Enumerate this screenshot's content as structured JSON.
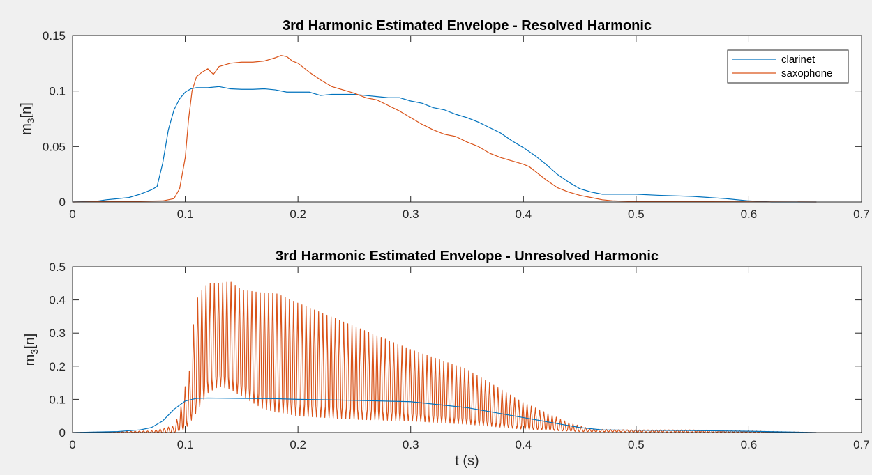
{
  "chart_data": [
    {
      "type": "line",
      "title": "3rd Harmonic Estimated Envelope - Resolved Harmonic",
      "xlabel": "",
      "ylabel": "m",
      "ylabel_sub": "3",
      "ylabel_suffix": "[n]",
      "xlim": [
        0,
        0.7
      ],
      "ylim": [
        0,
        0.15
      ],
      "xticks": [
        0,
        0.1,
        0.2,
        0.3,
        0.4,
        0.5,
        0.6,
        0.7
      ],
      "xtick_labels": [
        "0",
        "0.1",
        "0.2",
        "0.3",
        "0.4",
        "0.5",
        "0.6",
        "0.7"
      ],
      "yticks": [
        0,
        0.05,
        0.1,
        0.15
      ],
      "ytick_labels": [
        "0",
        "0.05",
        "0.1",
        "0.15"
      ],
      "grid": false,
      "legend": "top-right",
      "series": [
        {
          "name": "clarinet",
          "color": "#0072bd",
          "x": [
            0,
            0.02,
            0.03,
            0.04,
            0.05,
            0.06,
            0.07,
            0.075,
            0.08,
            0.085,
            0.09,
            0.095,
            0.1,
            0.105,
            0.11,
            0.12,
            0.13,
            0.14,
            0.15,
            0.16,
            0.17,
            0.18,
            0.19,
            0.2,
            0.21,
            0.22,
            0.23,
            0.24,
            0.25,
            0.26,
            0.27,
            0.28,
            0.29,
            0.3,
            0.31,
            0.32,
            0.33,
            0.34,
            0.35,
            0.36,
            0.37,
            0.38,
            0.39,
            0.4,
            0.41,
            0.42,
            0.43,
            0.44,
            0.45,
            0.46,
            0.47,
            0.48,
            0.49,
            0.5,
            0.52,
            0.55,
            0.58,
            0.6,
            0.62,
            0.66
          ],
          "y": [
            0,
            0.0005,
            0.002,
            0.003,
            0.004,
            0.007,
            0.011,
            0.014,
            0.035,
            0.065,
            0.083,
            0.093,
            0.099,
            0.102,
            0.103,
            0.103,
            0.104,
            0.102,
            0.1015,
            0.1015,
            0.102,
            0.101,
            0.099,
            0.099,
            0.099,
            0.096,
            0.097,
            0.097,
            0.097,
            0.096,
            0.095,
            0.094,
            0.094,
            0.091,
            0.089,
            0.085,
            0.083,
            0.079,
            0.076,
            0.072,
            0.067,
            0.062,
            0.055,
            0.049,
            0.042,
            0.034,
            0.025,
            0.018,
            0.012,
            0.009,
            0.007,
            0.007,
            0.007,
            0.007,
            0.006,
            0.005,
            0.003,
            0.001,
            0,
            0
          ]
        },
        {
          "name": "saxophone",
          "color": "#d95319",
          "x": [
            0,
            0.05,
            0.08,
            0.09,
            0.095,
            0.1,
            0.103,
            0.106,
            0.11,
            0.115,
            0.12,
            0.125,
            0.13,
            0.14,
            0.15,
            0.16,
            0.17,
            0.18,
            0.185,
            0.19,
            0.195,
            0.2,
            0.21,
            0.22,
            0.23,
            0.24,
            0.25,
            0.26,
            0.27,
            0.28,
            0.29,
            0.3,
            0.31,
            0.32,
            0.33,
            0.34,
            0.35,
            0.36,
            0.37,
            0.38,
            0.39,
            0.4,
            0.405,
            0.41,
            0.42,
            0.43,
            0.44,
            0.45,
            0.46,
            0.47,
            0.48,
            0.5,
            0.55,
            0.6,
            0.66
          ],
          "y": [
            0,
            0.0005,
            0.001,
            0.003,
            0.012,
            0.04,
            0.075,
            0.1,
            0.113,
            0.117,
            0.12,
            0.115,
            0.122,
            0.125,
            0.126,
            0.126,
            0.127,
            0.13,
            0.132,
            0.131,
            0.127,
            0.125,
            0.117,
            0.11,
            0.104,
            0.101,
            0.098,
            0.094,
            0.092,
            0.087,
            0.082,
            0.076,
            0.07,
            0.065,
            0.061,
            0.059,
            0.054,
            0.05,
            0.044,
            0.04,
            0.037,
            0.034,
            0.032,
            0.028,
            0.02,
            0.013,
            0.009,
            0.006,
            0.004,
            0.002,
            0.001,
            0.0005,
            0.0003,
            0.0002,
            0
          ]
        }
      ]
    },
    {
      "type": "line",
      "title": "3rd Harmonic Estimated Envelope - Unresolved Harmonic",
      "xlabel": "t (s)",
      "ylabel": "m",
      "ylabel_sub": "3",
      "ylabel_suffix": "[n]",
      "xlim": [
        0,
        0.7
      ],
      "ylim": [
        0,
        0.5
      ],
      "xticks": [
        0,
        0.1,
        0.2,
        0.3,
        0.4,
        0.5,
        0.6,
        0.7
      ],
      "xtick_labels": [
        "0",
        "0.1",
        "0.2",
        "0.3",
        "0.4",
        "0.5",
        "0.6",
        "0.7"
      ],
      "yticks": [
        0,
        0.1,
        0.2,
        0.3,
        0.4,
        0.5
      ],
      "ytick_labels": [
        "0",
        "0.1",
        "0.2",
        "0.3",
        "0.4",
        "0.5"
      ],
      "grid": false,
      "legend": "none",
      "oscillation_period_s": 0.0037,
      "series": [
        {
          "name": "saxophone",
          "color": "#d95319",
          "upper_envelope": {
            "x": [
              0,
              0.07,
              0.09,
              0.095,
              0.1,
              0.103,
              0.106,
              0.11,
              0.115,
              0.12,
              0.13,
              0.14,
              0.15,
              0.17,
              0.18,
              0.2,
              0.25,
              0.3,
              0.35,
              0.38,
              0.4,
              0.42,
              0.44,
              0.46,
              0.5,
              0.55,
              0.6,
              0.66
            ],
            "y": [
              0,
              0.005,
              0.02,
              0.06,
              0.14,
              0.16,
              0.29,
              0.4,
              0.43,
              0.45,
              0.45,
              0.455,
              0.43,
              0.42,
              0.42,
              0.39,
              0.32,
              0.25,
              0.19,
              0.13,
              0.09,
              0.06,
              0.03,
              0.01,
              0.008,
              0.008,
              0.005,
              0
            ]
          },
          "lower_envelope": {
            "x": [
              0,
              0.09,
              0.1,
              0.11,
              0.12,
              0.13,
              0.14,
              0.15,
              0.17,
              0.2,
              0.25,
              0.3,
              0.35,
              0.4,
              0.45,
              0.5,
              0.66
            ],
            "y": [
              0,
              0,
              0.01,
              0.06,
              0.12,
              0.14,
              0.13,
              0.11,
              0.07,
              0.05,
              0.04,
              0.035,
              0.025,
              0.01,
              0.003,
              0.002,
              0
            ]
          }
        },
        {
          "name": "clarinet",
          "color": "#0072bd",
          "x": [
            0,
            0.04,
            0.06,
            0.07,
            0.08,
            0.09,
            0.1,
            0.11,
            0.12,
            0.15,
            0.18,
            0.2,
            0.25,
            0.3,
            0.35,
            0.4,
            0.42,
            0.45,
            0.47,
            0.5,
            0.55,
            0.6,
            0.66
          ],
          "y": [
            0,
            0.003,
            0.008,
            0.015,
            0.035,
            0.07,
            0.095,
            0.103,
            0.104,
            0.103,
            0.102,
            0.1,
            0.097,
            0.093,
            0.075,
            0.045,
            0.033,
            0.015,
            0.008,
            0.007,
            0.006,
            0.004,
            0
          ]
        }
      ]
    }
  ]
}
